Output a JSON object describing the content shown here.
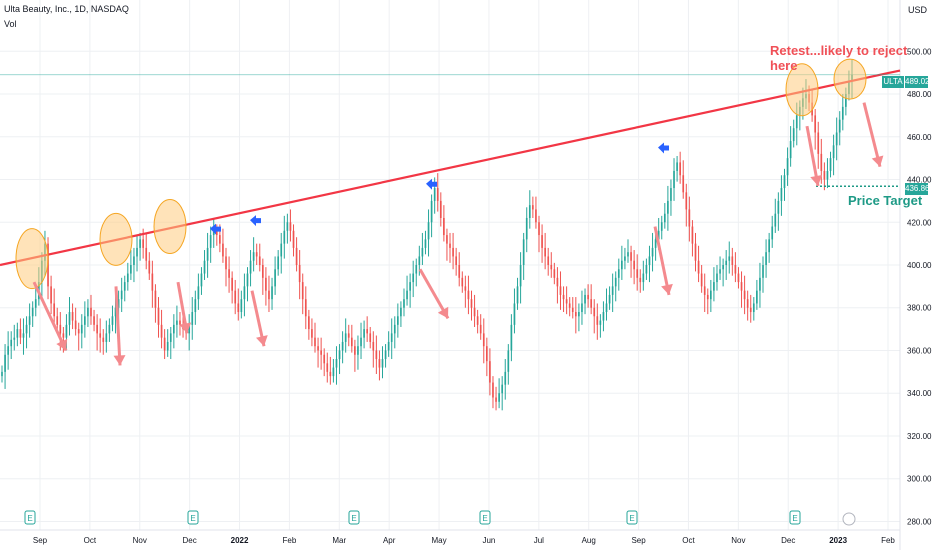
{
  "header": {
    "title": "Ulta Beauty, Inc., 1D, NASDAQ",
    "indicator": "Vol",
    "currency": "USD"
  },
  "annotations": {
    "retest": "Retest...likely to reject here",
    "price_target": "Price Target"
  },
  "tags": {
    "symbol": "ULTA",
    "last_price": "489.02",
    "target_price": "436.86"
  },
  "colors": {
    "up": "#26a69a",
    "down": "#ef5350",
    "trendline": "#f23645",
    "circle_fill": "#ffcc80",
    "circle_stroke": "#f5a623",
    "arrow": "#f48a8e",
    "marker": "#2962ff",
    "target": "#1e9a86",
    "grid": "#eef0f3"
  },
  "chart_data": {
    "type": "candlestick",
    "x_ticks": [
      "Sep",
      "Oct",
      "Nov",
      "Dec",
      "2022",
      "Feb",
      "Mar",
      "Apr",
      "May",
      "Jun",
      "Jul",
      "Aug",
      "Sep",
      "Oct",
      "Nov",
      "Dec",
      "2023",
      "Feb"
    ],
    "y_ticks": [
      280,
      300,
      320,
      340,
      360,
      380,
      400,
      420,
      440,
      460,
      480,
      500
    ],
    "y_range": [
      276,
      524
    ],
    "last_price": 489.02,
    "price_target": 436.86,
    "trendline": {
      "start": {
        "date": "2021-08-03",
        "price": 400
      },
      "end": {
        "date": "2023-02-10",
        "price": 491
      }
    },
    "earnings_markers": [
      "Aug '21",
      "Dec '21",
      "Mar '22",
      "May '22",
      "Aug '22",
      "Dec '22",
      "Mar '23"
    ],
    "closes": [
      350,
      358,
      362,
      365,
      366,
      370,
      366,
      368,
      372,
      376,
      380,
      384,
      392,
      402,
      410,
      390,
      382,
      376,
      372,
      368,
      366,
      372,
      378,
      374,
      370,
      368,
      372,
      376,
      380,
      376,
      372,
      368,
      366,
      364,
      368,
      372,
      376,
      380,
      384,
      388,
      392,
      396,
      400,
      404,
      408,
      412,
      408,
      402,
      396,
      388,
      380,
      372,
      366,
      360,
      364,
      368,
      372,
      374,
      372,
      370,
      368,
      372,
      378,
      384,
      390,
      396,
      402,
      408,
      414,
      416,
      414,
      410,
      404,
      398,
      394,
      388,
      382,
      378,
      384,
      390,
      396,
      402,
      406,
      404,
      400,
      394,
      388,
      384,
      390,
      398,
      404,
      410,
      416,
      420,
      416,
      408,
      400,
      392,
      384,
      376,
      370,
      366,
      362,
      360,
      358,
      354,
      350,
      348,
      352,
      356,
      360,
      364,
      368,
      366,
      362,
      358,
      362,
      366,
      370,
      368,
      364,
      360,
      356,
      352,
      356,
      360,
      364,
      368,
      372,
      376,
      380,
      384,
      388,
      392,
      396,
      400,
      404,
      408,
      412,
      420,
      430,
      436,
      430,
      422,
      414,
      410,
      408,
      404,
      400,
      394,
      390,
      388,
      384,
      380,
      376,
      372,
      368,
      362,
      355,
      345,
      338,
      336,
      340,
      344,
      350,
      360,
      372,
      382,
      390,
      400,
      412,
      422,
      428,
      426,
      420,
      414,
      408,
      404,
      400,
      398,
      394,
      390,
      386,
      384,
      382,
      380,
      378,
      376,
      378,
      382,
      386,
      384,
      380,
      376,
      372,
      374,
      378,
      382,
      386,
      390,
      394,
      398,
      402,
      404,
      406,
      402,
      398,
      394,
      392,
      396,
      400,
      404,
      408,
      412,
      416,
      420,
      424,
      430,
      436,
      444,
      448,
      442,
      434,
      426,
      418,
      410,
      402,
      396,
      390,
      386,
      384,
      388,
      392,
      396,
      398,
      400,
      402,
      404,
      400,
      396,
      392,
      388,
      384,
      380,
      378,
      382,
      388,
      394,
      400,
      406,
      412,
      418,
      424,
      430,
      436,
      442,
      450,
      458,
      464,
      470,
      474,
      478,
      480,
      476,
      470,
      462,
      452,
      444,
      440,
      444,
      450,
      456,
      462,
      468,
      474,
      480,
      486,
      489.02
    ]
  }
}
